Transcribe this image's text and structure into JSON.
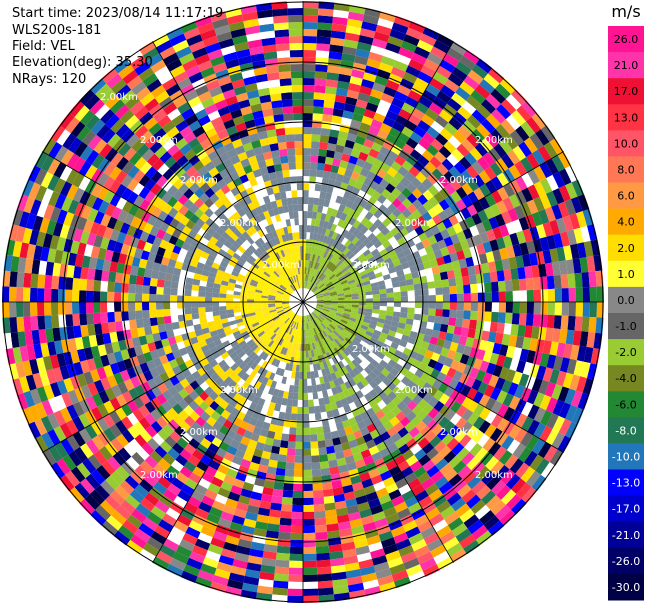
{
  "header": {
    "start_time": "Start time: 2023/08/14 11:17:19",
    "instrument": "WLS200s-181",
    "field": "Field: VEL",
    "elevation": "Elevation(deg): 35.30",
    "nrays": "NRays: 120"
  },
  "chart_data": {
    "type": "heatmap",
    "projection": "polar-ppi",
    "field": "VEL",
    "nrays": 120,
    "units": "m/s",
    "range_ring_labels": [
      "2.00km",
      "2.00km",
      "2.00km",
      "2.00km",
      "2.00km",
      "2.00km",
      "2.00km",
      "2.00km",
      "2.00km",
      "2.00km",
      "2.00km",
      "2.00km",
      "2.00km",
      "2.00km",
      "2.00km",
      "2.00km"
    ],
    "colorbar": {
      "label": "m/s",
      "ticks": [
        "26.0",
        "21.0",
        "17.0",
        "13.0",
        "10.0",
        "8.0",
        "6.0",
        "4.0",
        "2.0",
        "1.0",
        "0.0",
        "-1.0",
        "-2.0",
        "-4.0",
        "-6.0",
        "-8.0",
        "-10.0",
        "-13.0",
        "-17.0",
        "-21.0",
        "-26.0",
        "-30.0"
      ],
      "colors": [
        "#ff1493",
        "#ff33aa",
        "#ee1133",
        "#ff3344",
        "#ff5566",
        "#ff7755",
        "#ff9944",
        "#ffaa00",
        "#ffdd00",
        "#ffff33",
        "#888888",
        "#666666",
        "#99cc33",
        "#778822",
        "#228833",
        "#227755",
        "#2277bb",
        "#0000ff",
        "#0000cc",
        "#000099",
        "#000066",
        "#000044"
      ]
    }
  }
}
